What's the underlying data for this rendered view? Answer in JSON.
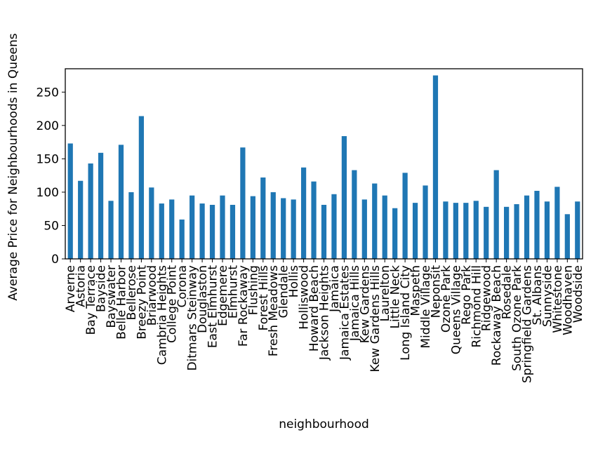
{
  "chart_data": {
    "type": "bar",
    "title": "",
    "xlabel": "neighbourhood",
    "ylabel": "Average Price for Neighbourhoods in Queens",
    "ylim": [
      0,
      285
    ],
    "yticks": [
      0,
      50,
      100,
      150,
      200,
      250
    ],
    "grid": false,
    "legend": "none",
    "bar_color": "#1f77b4",
    "categories": [
      "Arverne",
      "Astoria",
      "Bay Terrace",
      "Bayside",
      "Bayswater",
      "Belle Harbor",
      "Bellerose",
      "Breezy Point",
      "Briarwood",
      "Cambria Heights",
      "College Point",
      "Corona",
      "Ditmars Steinway",
      "Douglaston",
      "East Elmhurst",
      "Edgemere",
      "Elmhurst",
      "Far Rockaway",
      "Flushing",
      "Forest Hills",
      "Fresh Meadows",
      "Glendale",
      "Hollis",
      "Holliswood",
      "Howard Beach",
      "Jackson Heights",
      "Jamaica",
      "Jamaica Estates",
      "Jamaica Hills",
      "Kew Gardens",
      "Kew Gardens Hills",
      "Laurelton",
      "Little Neck",
      "Long Island City",
      "Maspeth",
      "Middle Village",
      "Neponsit",
      "Ozone Park",
      "Queens Village",
      "Rego Park",
      "Richmond Hill",
      "Ridgewood",
      "Rockaway Beach",
      "Rosedale",
      "South Ozone Park",
      "Springfield Gardens",
      "St. Albans",
      "Sunnyside",
      "Whitestone",
      "Woodhaven",
      "Woodside"
    ],
    "values": [
      173,
      117,
      143,
      159,
      87,
      171,
      100,
      214,
      107,
      83,
      89,
      59,
      95,
      83,
      81,
      95,
      81,
      167,
      94,
      122,
      100,
      91,
      89,
      137,
      116,
      81,
      97,
      184,
      133,
      89,
      113,
      95,
      76,
      129,
      84,
      110,
      275,
      86,
      84,
      84,
      87,
      78,
      133,
      78,
      82,
      95,
      102,
      86,
      108,
      67,
      86
    ]
  }
}
